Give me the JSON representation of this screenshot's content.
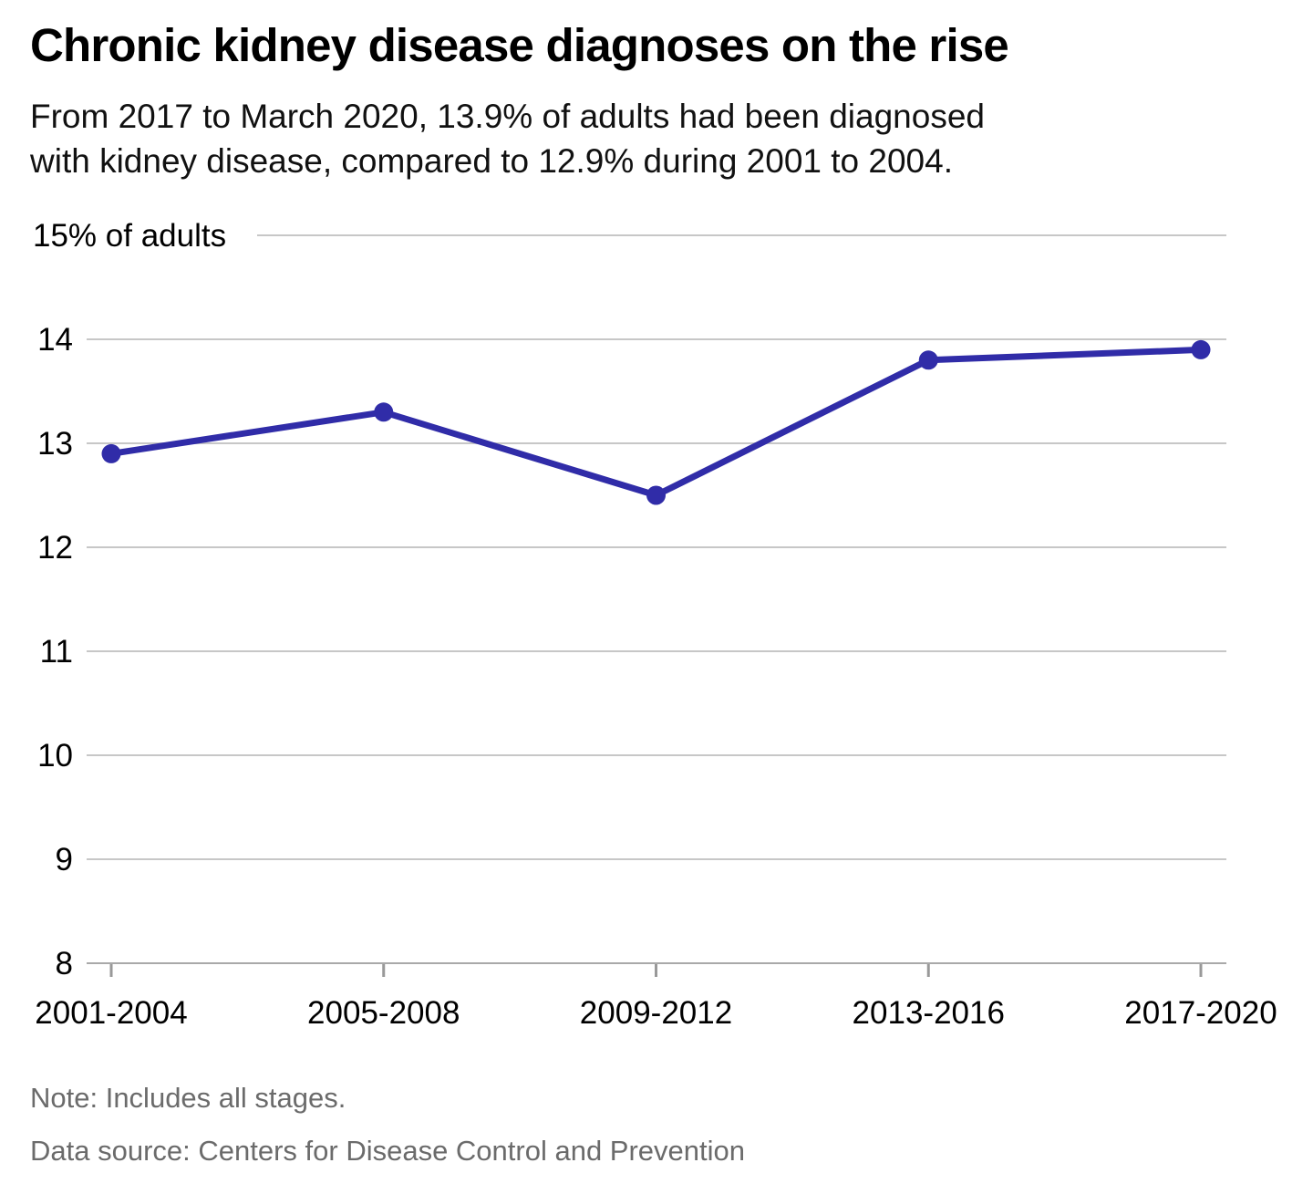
{
  "header": {
    "subtitle_lines": [
      "From 2017 to March 2020, 13.9% of adults had been diagnosed",
      "with kidney disease, compared to 12.9% during 2001 to 2004."
    ]
  },
  "chart_data": {
    "type": "line",
    "title": "Chronic kidney disease diagnoses on the rise",
    "subtitle": "From 2017 to March 2020, 13.9% of adults had been diagnosed with kidney disease, compared to 12.9% during 2001 to 2004.",
    "categories": [
      "2001-2004",
      "2005-2008",
      "2009-2012",
      "2013-2016",
      "2017-2020"
    ],
    "values": [
      12.9,
      13.3,
      12.5,
      13.8,
      13.9
    ],
    "xlabel": "",
    "ylabel": "% of adults",
    "ylim": [
      8,
      15
    ],
    "ytick_interval": 1,
    "ytick_labels": [
      "8",
      "9",
      "10",
      "11",
      "12",
      "13",
      "14"
    ],
    "ytop_label": "15% of adults",
    "grid": true,
    "legend": "none",
    "line_color": "#302ca8",
    "gridline_color": "#c7c7c7",
    "axis_color": "#a9a9a9",
    "tick_color": "#999999",
    "text_color": "#000000"
  },
  "footer": {
    "note": "Note: Includes all stages.",
    "source": "Data source: Centers for Disease Control and Prevention"
  }
}
